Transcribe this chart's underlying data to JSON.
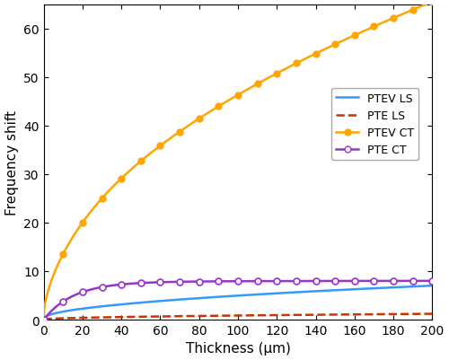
{
  "title": "",
  "xlabel": "Thickness (μm)",
  "ylabel": "Frequency shift",
  "xlim": [
    0,
    200
  ],
  "ylim": [
    0,
    65
  ],
  "x_ticks": [
    0,
    20,
    40,
    60,
    80,
    100,
    120,
    140,
    160,
    180,
    200
  ],
  "y_ticks": [
    0,
    10,
    20,
    30,
    40,
    50,
    60
  ],
  "series": [
    {
      "label": "PTEV LS",
      "color": "#3399FF",
      "linestyle": "-",
      "marker": null,
      "marker_filled": false,
      "linewidth": 1.8
    },
    {
      "label": "PTE LS",
      "color": "#CC3300",
      "linestyle": "--",
      "marker": null,
      "marker_filled": false,
      "linewidth": 1.8
    },
    {
      "label": "PTEV CT",
      "color": "#FFA500",
      "linestyle": "-",
      "marker": "o",
      "marker_filled": true,
      "markersize": 5,
      "linewidth": 1.8
    },
    {
      "label": "PTE CT",
      "color": "#9933CC",
      "linestyle": "-",
      "marker": "o",
      "marker_filled": false,
      "markersize": 5,
      "linewidth": 1.8
    }
  ],
  "legend_loc": "center right",
  "background_color": "#ffffff",
  "marker_x_points": [
    0,
    10,
    20,
    30,
    40,
    50,
    60,
    70,
    80,
    90,
    100,
    110,
    120,
    130,
    140,
    150,
    160,
    170,
    180,
    190,
    200
  ],
  "figsize": [
    5.0,
    4.02
  ],
  "dpi": 100
}
